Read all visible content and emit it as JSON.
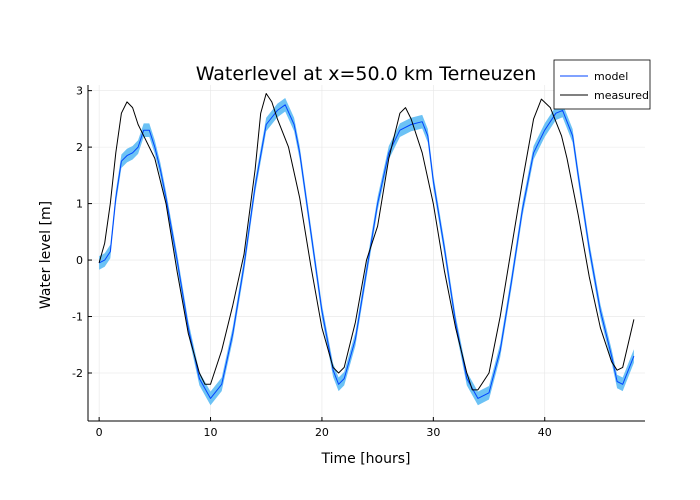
{
  "chart_data": {
    "type": "line",
    "title": "Waterlevel at x=50.0 km Terneuzen",
    "xlabel": "Time [hours]",
    "ylabel": "Water level [m]",
    "xlim": [
      -1,
      49
    ],
    "ylim": [
      -2.85,
      3.1
    ],
    "xticks": [
      0,
      10,
      20,
      30,
      40
    ],
    "yticks": [
      -2,
      -1,
      0,
      1,
      2,
      3
    ],
    "grid": true,
    "legend": {
      "position": "top-right"
    },
    "colors": {
      "model": "#0044ff",
      "band": "#6cc2f5",
      "measured": "#000000"
    },
    "series": [
      {
        "name": "model",
        "x": [
          0.0,
          0.5,
          1.0,
          1.5,
          2.0,
          2.5,
          3.0,
          3.5,
          4.0,
          4.5,
          5.0,
          5.5,
          6.0,
          7.0,
          8.0,
          9.0,
          10.0,
          11.0,
          12.0,
          13.0,
          14.0,
          15.0,
          16.0,
          16.7,
          17.5,
          18.0,
          19.0,
          20.0,
          21.0,
          21.5,
          22.0,
          23.0,
          24.0,
          25.0,
          26.0,
          27.0,
          28.0,
          29.0,
          29.5,
          30.0,
          31.0,
          32.0,
          33.0,
          34.0,
          35.0,
          36.0,
          37.0,
          38.0,
          39.0,
          40.0,
          41.0,
          41.6,
          42.5,
          43.0,
          44.0,
          45.0,
          46.0,
          46.5,
          47.0,
          48.0
        ],
        "values": [
          -0.05,
          0.0,
          0.15,
          1.1,
          1.75,
          1.85,
          1.9,
          2.0,
          2.3,
          2.3,
          2.0,
          1.6,
          1.1,
          0.0,
          -1.2,
          -2.1,
          -2.45,
          -2.2,
          -1.3,
          -0.1,
          1.3,
          2.4,
          2.65,
          2.75,
          2.4,
          1.9,
          0.5,
          -0.9,
          -1.95,
          -2.2,
          -2.1,
          -1.4,
          -0.2,
          1.0,
          1.9,
          2.3,
          2.4,
          2.45,
          2.2,
          1.4,
          0.2,
          -1.1,
          -2.1,
          -2.45,
          -2.35,
          -1.6,
          -0.4,
          0.9,
          1.9,
          2.3,
          2.6,
          2.65,
          2.2,
          1.5,
          0.2,
          -0.9,
          -1.7,
          -2.15,
          -2.2,
          -1.7
        ],
        "band_halfwidth": 0.12
      },
      {
        "name": "measured",
        "x": [
          0.0,
          0.5,
          1.0,
          1.5,
          2.0,
          2.5,
          3.0,
          3.5,
          4.0,
          5.0,
          6.0,
          7.0,
          8.0,
          9.0,
          9.5,
          10.0,
          11.0,
          12.0,
          13.0,
          14.0,
          14.5,
          15.0,
          15.5,
          16.0,
          17.0,
          18.0,
          19.0,
          20.0,
          21.0,
          21.5,
          22.0,
          23.0,
          24.0,
          25.0,
          26.0,
          27.0,
          27.5,
          28.0,
          29.0,
          30.0,
          31.0,
          32.0,
          33.0,
          33.5,
          34.0,
          35.0,
          36.0,
          37.0,
          38.0,
          39.0,
          39.7,
          40.5,
          41.5,
          42.0,
          43.0,
          44.0,
          45.0,
          46.0,
          46.5,
          47.0,
          48.0
        ],
        "values": [
          -0.05,
          0.3,
          1.0,
          1.9,
          2.6,
          2.8,
          2.7,
          2.4,
          2.2,
          1.8,
          1.0,
          -0.2,
          -1.3,
          -2.0,
          -2.2,
          -2.2,
          -1.6,
          -0.8,
          0.1,
          1.6,
          2.6,
          2.95,
          2.8,
          2.5,
          2.0,
          1.1,
          -0.1,
          -1.2,
          -1.9,
          -2.0,
          -1.9,
          -1.1,
          0.0,
          0.6,
          1.8,
          2.6,
          2.7,
          2.5,
          1.9,
          1.0,
          -0.2,
          -1.2,
          -2.0,
          -2.3,
          -2.3,
          -2.0,
          -1.0,
          0.2,
          1.4,
          2.5,
          2.85,
          2.7,
          2.2,
          1.8,
          0.8,
          -0.3,
          -1.2,
          -1.8,
          -1.95,
          -1.9,
          -1.05
        ]
      }
    ]
  }
}
